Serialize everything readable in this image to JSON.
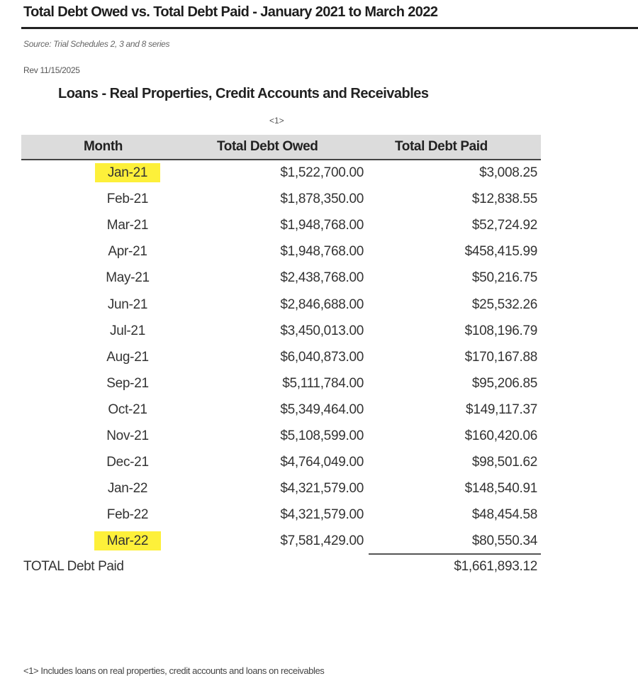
{
  "title": "Total Debt Owed vs. Total Debt Paid - January 2021 to March 2022",
  "source": "Source: Trial Schedules 2, 3 and 8 series",
  "rev": "Rev 11/15/2025",
  "subtitle": "Loans - Real Properties, Credit Accounts and Receivables",
  "note_ref": "<1>",
  "highlight_color": "#fdf03a",
  "table": {
    "headers": [
      "Month",
      "Total Debt Owed",
      "Total Debt Paid"
    ],
    "rows": [
      {
        "month": "Jan-21",
        "owed": "$1,522,700.00",
        "paid": "$3,008.25",
        "highlighted": true
      },
      {
        "month": "Feb-21",
        "owed": "$1,878,350.00",
        "paid": "$12,838.55"
      },
      {
        "month": "Mar-21",
        "owed": "$1,948,768.00",
        "paid": "$52,724.92"
      },
      {
        "month": "Apr-21",
        "owed": "$1,948,768.00",
        "paid": "$458,415.99"
      },
      {
        "month": "May-21",
        "owed": "$2,438,768.00",
        "paid": "$50,216.75"
      },
      {
        "month": "Jun-21",
        "owed": "$2,846,688.00",
        "paid": "$25,532.26"
      },
      {
        "month": "Jul-21",
        "owed": "$3,450,013.00",
        "paid": "$108,196.79"
      },
      {
        "month": "Aug-21",
        "owed": "$6,040,873.00",
        "paid": "$170,167.88"
      },
      {
        "month": "Sep-21",
        "owed": "$5,111,784.00",
        "paid": "$95,206.85"
      },
      {
        "month": "Oct-21",
        "owed": "$5,349,464.00",
        "paid": "$149,117.37"
      },
      {
        "month": "Nov-21",
        "owed": "$5,108,599.00",
        "paid": "$160,420.06"
      },
      {
        "month": "Dec-21",
        "owed": "$4,764,049.00",
        "paid": "$98,501.62"
      },
      {
        "month": "Jan-22",
        "owed": "$4,321,579.00",
        "paid": "$148,540.91"
      },
      {
        "month": "Feb-22",
        "owed": "$4,321,579.00",
        "paid": "$48,454.58"
      },
      {
        "month": "Mar-22",
        "owed": "$7,581,429.00",
        "paid": "$80,550.34",
        "highlighted": true
      }
    ],
    "total_label": "TOTAL Debt Paid",
    "total_value": "$1,661,893.12"
  },
  "footnote": "<1> Includes loans on real properties, credit accounts and loans on receivables"
}
